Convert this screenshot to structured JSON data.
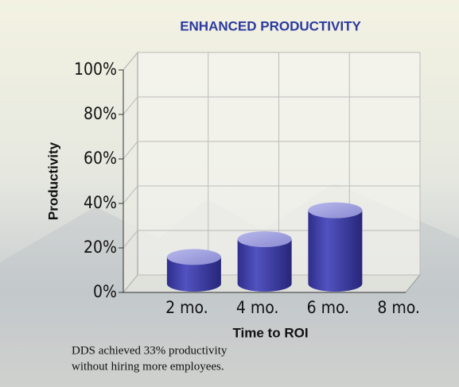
{
  "chart_data": {
    "type": "bar",
    "title": "ENHANCED PRODUCTIVITY",
    "x_label": "Time to ROI",
    "y_label": "Productivity",
    "categories": [
      "2 mo.",
      "4 mo.",
      "6 mo.",
      "8 mo."
    ],
    "values": [
      12,
      20,
      33,
      null
    ],
    "color": "#3d3da6",
    "ylim": [
      0,
      100
    ],
    "yticks": [
      {
        "value": 0,
        "label": "0%"
      },
      {
        "value": 20,
        "label": "20%"
      },
      {
        "value": 40,
        "label": "40%"
      },
      {
        "value": 60,
        "label": "60%"
      },
      {
        "value": 80,
        "label": "80%"
      },
      {
        "value": 100,
        "label": "100%"
      }
    ],
    "grid": true,
    "annotations": [
      "DDS achieved 33% productivity",
      "without hiring more employees."
    ]
  }
}
